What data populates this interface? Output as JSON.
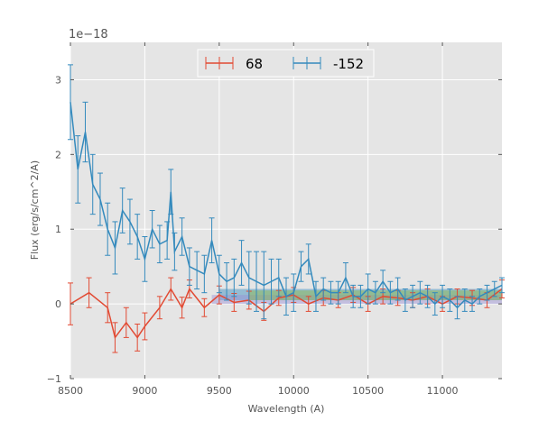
{
  "chart_data": {
    "type": "line",
    "title": "",
    "xlabel": "Wavelength (A)",
    "ylabel": "Flux (erg/s/cm^2/A)",
    "y_offset_label": "1e−18",
    "xlim": [
      8500,
      11400
    ],
    "ylim": [
      -1,
      3.5
    ],
    "x_ticks": [
      8500,
      9000,
      9500,
      10000,
      10500,
      11000
    ],
    "x_tick_labels": [
      "8500",
      "9000",
      "9500",
      "10000",
      "10500",
      "11000"
    ],
    "y_ticks": [
      -1,
      0,
      1,
      2,
      3
    ],
    "y_tick_labels": [
      "−1",
      "0",
      "1",
      "2",
      "3"
    ],
    "grid": true,
    "legend_position": "top-center",
    "background": "#e5e5e5",
    "series": [
      {
        "name": "68",
        "color": "#e24a33",
        "style": "errorbar",
        "x": [
          8500,
          8625,
          8750,
          8800,
          8875,
          8950,
          9000,
          9100,
          9175,
          9250,
          9300,
          9400,
          9500,
          9600,
          9700,
          9800,
          9900,
          10000,
          10100,
          10200,
          10300,
          10400,
          10500,
          10600,
          10700,
          10800,
          10900,
          11000,
          11100,
          11200,
          11300,
          11400
        ],
        "y": [
          0.0,
          0.15,
          -0.05,
          -0.45,
          -0.25,
          -0.45,
          -0.3,
          -0.05,
          0.2,
          -0.05,
          0.2,
          -0.05,
          0.12,
          0.02,
          0.05,
          -0.1,
          0.08,
          0.12,
          0.0,
          0.08,
          0.05,
          0.12,
          0.0,
          0.1,
          0.08,
          0.05,
          0.1,
          0.0,
          0.1,
          0.08,
          0.05,
          0.2
        ],
        "error": [
          0.28,
          0.2,
          0.2,
          0.2,
          0.2,
          0.18,
          0.18,
          0.15,
          0.15,
          0.14,
          0.12,
          0.12,
          0.12,
          0.12,
          0.12,
          0.12,
          0.1,
          0.1,
          0.1,
          0.1,
          0.1,
          0.1,
          0.1,
          0.1,
          0.1,
          0.1,
          0.1,
          0.1,
          0.1,
          0.1,
          0.1,
          0.12
        ]
      },
      {
        "name": "-152",
        "color": "#348abd",
        "style": "errorbar",
        "x": [
          8500,
          8550,
          8600,
          8650,
          8700,
          8750,
          8800,
          8850,
          8900,
          8950,
          9000,
          9050,
          9100,
          9150,
          9175,
          9200,
          9250,
          9300,
          9350,
          9400,
          9450,
          9500,
          9550,
          9600,
          9650,
          9700,
          9750,
          9800,
          9850,
          9900,
          9950,
          10000,
          10050,
          10100,
          10150,
          10200,
          10250,
          10300,
          10350,
          10400,
          10450,
          10500,
          10550,
          10600,
          10650,
          10700,
          10750,
          10800,
          10850,
          10900,
          10950,
          11000,
          11050,
          11100,
          11150,
          11200,
          11250,
          11300,
          11350,
          11400
        ],
        "y": [
          2.7,
          1.8,
          2.3,
          1.6,
          1.4,
          1.0,
          0.75,
          1.25,
          1.1,
          0.9,
          0.6,
          1.0,
          0.8,
          0.85,
          1.5,
          0.7,
          0.9,
          0.5,
          0.45,
          0.4,
          0.85,
          0.4,
          0.3,
          0.35,
          0.55,
          0.35,
          0.3,
          0.25,
          0.3,
          0.35,
          0.1,
          0.15,
          0.5,
          0.6,
          0.1,
          0.2,
          0.15,
          0.15,
          0.35,
          0.1,
          0.1,
          0.2,
          0.15,
          0.3,
          0.15,
          0.2,
          0.05,
          0.1,
          0.15,
          0.1,
          0.0,
          0.1,
          0.05,
          -0.05,
          0.05,
          0.0,
          0.1,
          0.15,
          0.2,
          0.25
        ],
        "error": [
          0.5,
          0.45,
          0.4,
          0.4,
          0.35,
          0.35,
          0.35,
          0.3,
          0.3,
          0.3,
          0.3,
          0.25,
          0.25,
          0.25,
          0.3,
          0.25,
          0.25,
          0.25,
          0.25,
          0.25,
          0.3,
          0.25,
          0.25,
          0.25,
          0.3,
          0.35,
          0.4,
          0.45,
          0.3,
          0.25,
          0.25,
          0.25,
          0.2,
          0.2,
          0.2,
          0.15,
          0.15,
          0.15,
          0.2,
          0.15,
          0.15,
          0.2,
          0.15,
          0.15,
          0.15,
          0.15,
          0.15,
          0.15,
          0.15,
          0.15,
          0.15,
          0.15,
          0.15,
          0.15,
          0.15,
          0.1,
          0.1,
          0.1,
          0.1,
          0.1
        ]
      }
    ],
    "bands": [
      {
        "color": "#348abd",
        "x_range": [
          9500,
          11400
        ],
        "y_range": [
          0.05,
          0.2
        ]
      },
      {
        "color": "#988ed5",
        "x_range": [
          9450,
          11400
        ],
        "y_range": [
          0.0,
          0.12
        ]
      },
      {
        "color": "#8eba42",
        "x_range": [
          9700,
          11400
        ],
        "y_range": [
          0.05,
          0.18
        ]
      }
    ]
  }
}
